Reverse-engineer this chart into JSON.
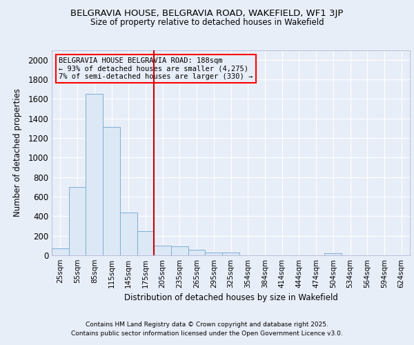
{
  "title1": "BELGRAVIA HOUSE, BELGRAVIA ROAD, WAKEFIELD, WF1 3JP",
  "title2": "Size of property relative to detached houses in Wakefield",
  "xlabel": "Distribution of detached houses by size in Wakefield",
  "ylabel": "Number of detached properties",
  "bin_labels": [
    "25sqm",
    "55sqm",
    "85sqm",
    "115sqm",
    "145sqm",
    "175sqm",
    "205sqm",
    "235sqm",
    "265sqm",
    "295sqm",
    "325sqm",
    "354sqm",
    "384sqm",
    "414sqm",
    "444sqm",
    "474sqm",
    "504sqm",
    "534sqm",
    "564sqm",
    "594sqm",
    "624sqm"
  ],
  "bar_heights": [
    70,
    700,
    1650,
    1310,
    440,
    250,
    100,
    90,
    55,
    30,
    25,
    0,
    0,
    0,
    0,
    0,
    20,
    0,
    0,
    0,
    0
  ],
  "bar_color": "#dce8f5",
  "bar_edge_color": "#7bafd4",
  "annotation_title": "BELGRAVIA HOUSE BELGRAVIA ROAD: 188sqm",
  "annotation_line2": "← 93% of detached houses are smaller (4,275)",
  "annotation_line3": "7% of semi-detached houses are larger (330) →",
  "ylim": [
    0,
    2100
  ],
  "yticks": [
    0,
    200,
    400,
    600,
    800,
    1000,
    1200,
    1400,
    1600,
    1800,
    2000
  ],
  "footnote1": "Contains HM Land Registry data © Crown copyright and database right 2025.",
  "footnote2": "Contains public sector information licensed under the Open Government Licence v3.0.",
  "bg_color": "#e8eef8",
  "plot_bg_color": "#e8eef8",
  "grid_color": "#ffffff",
  "red_line_color": "#cc0000"
}
